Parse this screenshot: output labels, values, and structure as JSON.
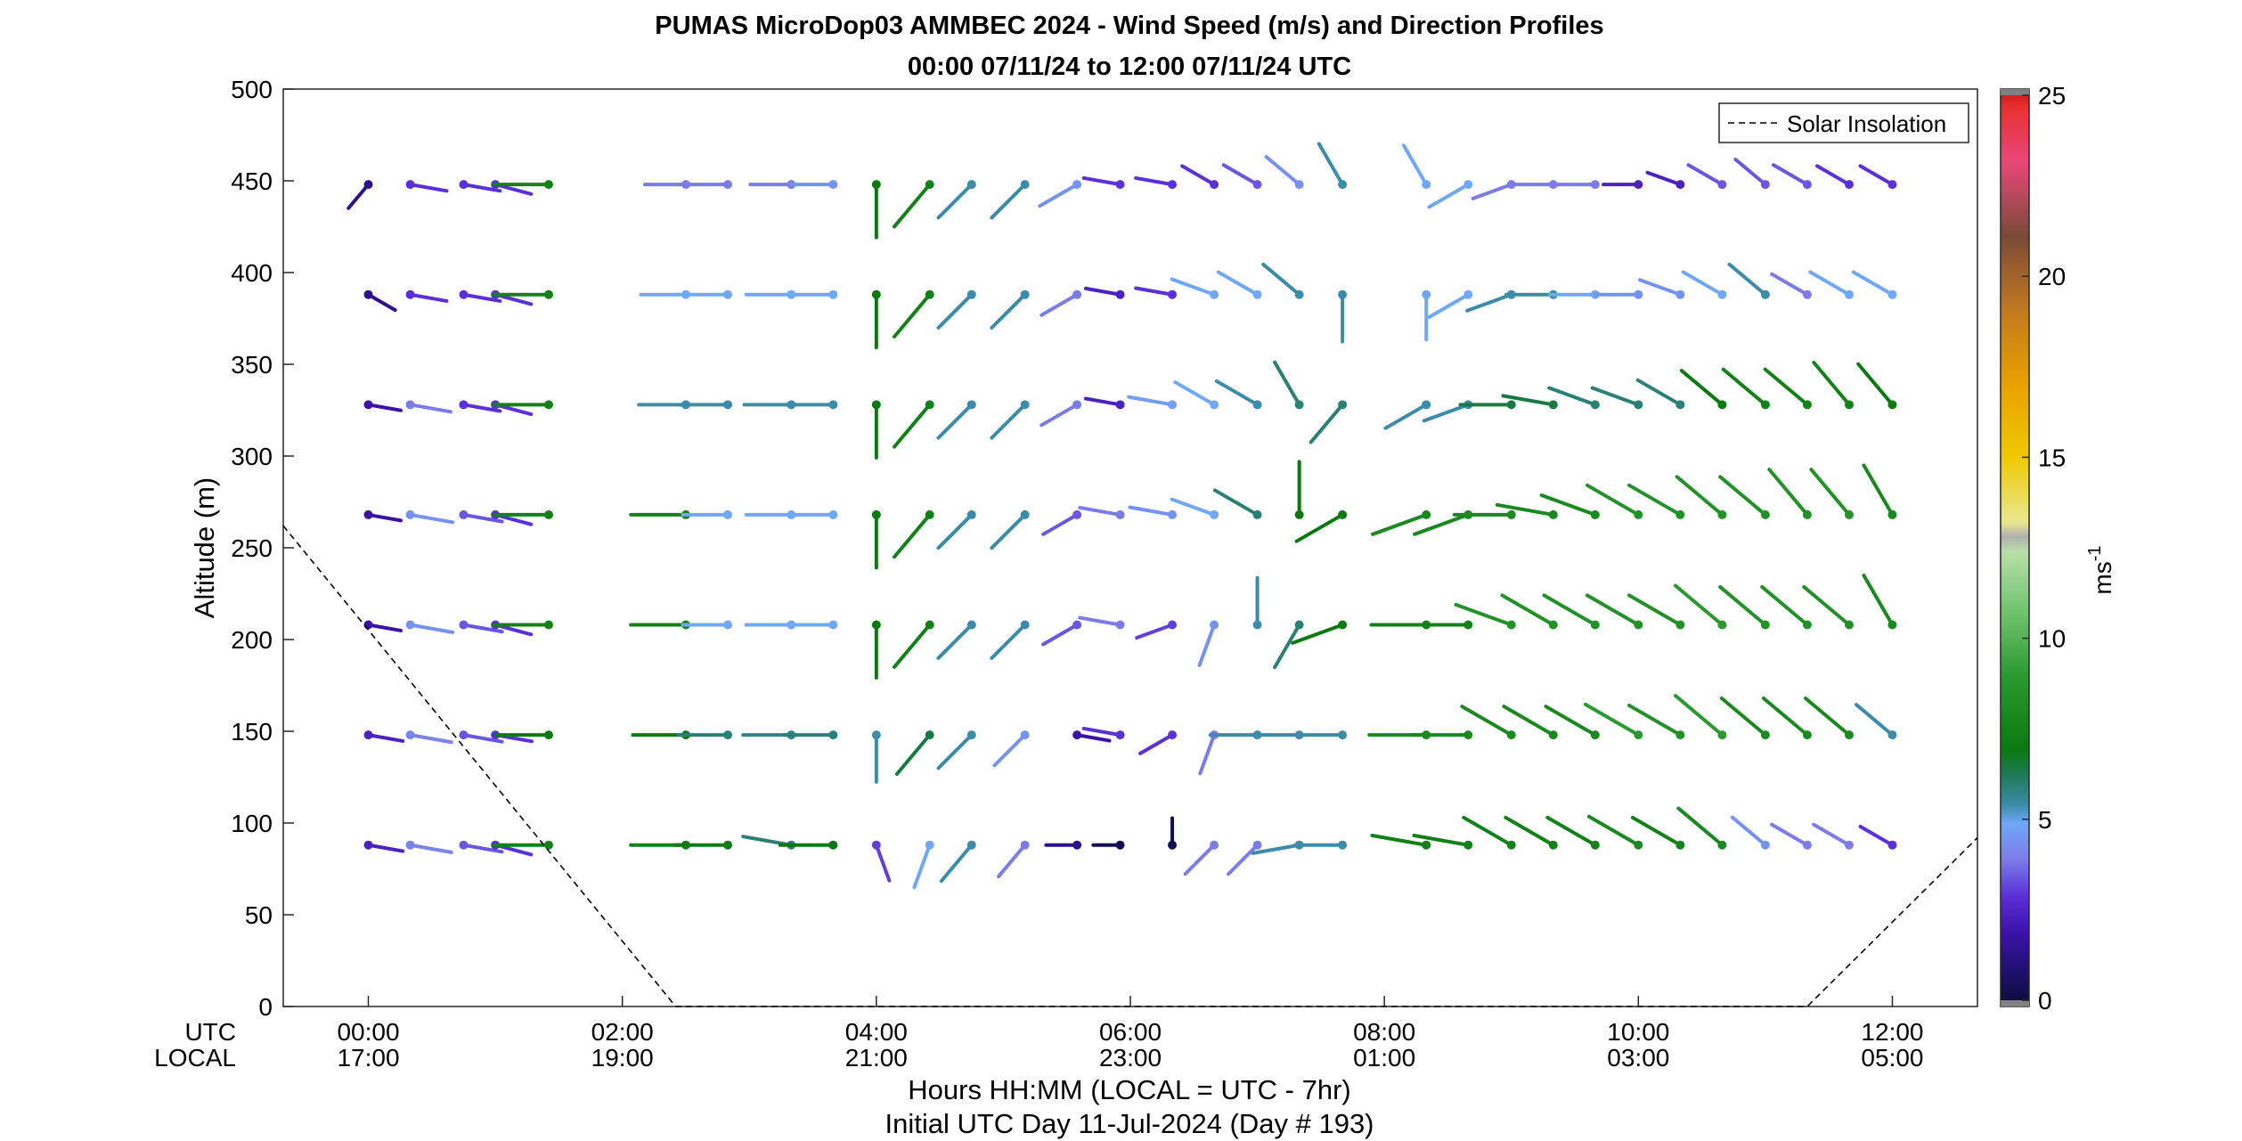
{
  "chart_data": {
    "type": "scatter",
    "title": "PUMAS MicroDop03 AMMBEC 2024 - Wind Speed (m/s) and Direction Profiles",
    "subtitle": "00:00 07/11/24 to 12:00 07/11/24  UTC",
    "ylabel": "Altitude (m)",
    "xlabel": "Hours HH:MM  (LOCAL = UTC - 7hr)",
    "xlabel2": "Initial UTC Day 11-Jul-2024 (Day # 193)",
    "xrow_utc": "UTC",
    "xrow_local": "LOCAL",
    "xlim_hours": [
      -0.67,
      12.67
    ],
    "ylim": [
      0,
      500
    ],
    "yticks": [
      "0",
      "50",
      "100",
      "150",
      "200",
      "250",
      "300",
      "350",
      "400",
      "450",
      "500"
    ],
    "xticks": [
      {
        "hour": 0,
        "utc": "00:00",
        "local": "17:00"
      },
      {
        "hour": 2,
        "utc": "02:00",
        "local": "19:00"
      },
      {
        "hour": 4,
        "utc": "04:00",
        "local": "21:00"
      },
      {
        "hour": 6,
        "utc": "06:00",
        "local": "23:00"
      },
      {
        "hour": 8,
        "utc": "08:00",
        "local": "01:00"
      },
      {
        "hour": 10,
        "utc": "10:00",
        "local": "03:00"
      },
      {
        "hour": 12,
        "utc": "12:00",
        "local": "05:00"
      }
    ],
    "legend": {
      "label": "Solar Insolation",
      "placement": "top-right",
      "style": "dashed black line"
    },
    "solar_insolation_altitude": [
      [
        -0.67,
        262
      ],
      [
        2.42,
        0
      ],
      [
        11.33,
        0
      ],
      [
        12.67,
        92
      ]
    ],
    "colorbar": {
      "label": "ms",
      "label_exponent": "-1",
      "range": [
        0,
        25
      ],
      "ticks": [
        "0",
        "5",
        "10",
        "15",
        "20",
        "25"
      ],
      "stops": [
        [
          0,
          "#0c0c36"
        ],
        [
          1,
          "#1f1070"
        ],
        [
          2,
          "#3b12a8"
        ],
        [
          3,
          "#5a30d8"
        ],
        [
          4,
          "#7c7ce8"
        ],
        [
          5,
          "#6fa8f8"
        ],
        [
          5.5,
          "#3a8ca8"
        ],
        [
          6.3,
          "#1e7a58"
        ],
        [
          7,
          "#0a7a10"
        ],
        [
          9,
          "#2a9a30"
        ],
        [
          11,
          "#7cc878"
        ],
        [
          12.4,
          "#b8e0a8"
        ],
        [
          12.8,
          "#b0b0b0"
        ],
        [
          13.2,
          "#e8e890"
        ],
        [
          15,
          "#f0c800"
        ],
        [
          17,
          "#e8a000"
        ],
        [
          19,
          "#c07820"
        ],
        [
          21,
          "#7a4a38"
        ],
        [
          23,
          "#e8487a"
        ],
        [
          24.5,
          "#e83030"
        ],
        [
          25,
          "#d01010"
        ]
      ]
    },
    "barb_altitudes": [
      88,
      148,
      208,
      268,
      328,
      388,
      448
    ],
    "barb_times": [
      0,
      0.33,
      0.75,
      1.0,
      1.42,
      2.5,
      2.83,
      3.33,
      3.66,
      4.0,
      4.42,
      4.75,
      5.17,
      5.58,
      5.92,
      6.33,
      6.66,
      7.0,
      7.33,
      7.67,
      8.33,
      8.66,
      9.0,
      9.33,
      9.66,
      10.0,
      10.33,
      10.66,
      11.0,
      11.33,
      11.66,
      12.0
    ],
    "wind_profiles": [
      {
        "alt": 88,
        "speed": [
          2.5,
          4.2,
          3.5,
          3.0,
          7.5,
          7.5,
          7.2,
          6.0,
          7.0,
          3.2,
          5.0,
          5.5,
          4.0,
          1.5,
          0.5,
          0.5,
          4.0,
          4.0,
          5.5,
          5.5,
          7.5,
          7.5,
          7.5,
          7.5,
          7.5,
          8.0,
          7.5,
          8.0,
          4.5,
          4.0,
          4.0,
          3.0
        ],
        "dir": [
          100,
          100,
          100,
          105,
          270,
          270,
          270,
          280,
          270,
          160,
          200,
          220,
          220,
          270,
          270,
          360,
          225,
          225,
          260,
          270,
          280,
          280,
          300,
          300,
          300,
          300,
          300,
          310,
          310,
          300,
          300,
          300
        ]
      },
      {
        "alt": 148,
        "speed": [
          2.5,
          4.2,
          3.5,
          3.0,
          7.0,
          7.0,
          6.0,
          5.8,
          6.0,
          5.5,
          6.5,
          5.5,
          4.5,
          2.0,
          3.0,
          3.0,
          4.0,
          5.5,
          5.5,
          5.5,
          8.0,
          8.0,
          8.0,
          8.0,
          8.0,
          9.0,
          8.5,
          9.0,
          8.0,
          8.0,
          8.0,
          5.5
        ],
        "dir": [
          100,
          100,
          100,
          100,
          270,
          270,
          270,
          270,
          270,
          180,
          220,
          225,
          225,
          100,
          280,
          240,
          200,
          270,
          270,
          270,
          270,
          270,
          300,
          300,
          300,
          300,
          300,
          310,
          310,
          310,
          310,
          310
        ]
      },
      {
        "alt": 208,
        "speed": [
          2.0,
          4.5,
          3.5,
          3.0,
          7.5,
          7.5,
          5.0,
          5.0,
          5.0,
          7.0,
          7.5,
          5.5,
          5.5,
          3.5,
          4.0,
          3.2,
          4.5,
          5.5,
          6.0,
          7.0,
          7.5,
          7.5,
          8.5,
          8.5,
          8.5,
          8.5,
          8.5,
          9.0,
          8.5,
          8.5,
          8.5,
          8.0
        ],
        "dir": [
          100,
          100,
          100,
          105,
          270,
          270,
          270,
          270,
          270,
          180,
          220,
          225,
          225,
          240,
          280,
          250,
          200,
          360,
          210,
          250,
          270,
          270,
          290,
          300,
          300,
          300,
          300,
          310,
          310,
          310,
          310,
          330
        ]
      },
      {
        "alt": 268,
        "speed": [
          2.0,
          4.5,
          3.5,
          3.0,
          7.5,
          7.5,
          5.0,
          5.0,
          5.0,
          7.0,
          7.5,
          5.5,
          5.5,
          3.5,
          4.0,
          4.5,
          5.0,
          6.0,
          7.0,
          7.0,
          8.0,
          8.0,
          8.0,
          8.0,
          8.0,
          8.5,
          8.5,
          8.5,
          8.5,
          8.5,
          8.5,
          8.0
        ],
        "dir": [
          100,
          100,
          100,
          105,
          270,
          270,
          270,
          270,
          270,
          180,
          220,
          225,
          225,
          240,
          280,
          280,
          290,
          300,
          360,
          240,
          250,
          250,
          270,
          280,
          290,
          300,
          300,
          310,
          310,
          320,
          320,
          330
        ]
      },
      {
        "alt": 328,
        "speed": [
          2.0,
          4.0,
          3.0,
          3.0,
          7.5,
          5.5,
          5.5,
          5.5,
          5.5,
          7.0,
          7.5,
          5.5,
          5.5,
          4.0,
          2.5,
          4.8,
          5.0,
          5.5,
          6.0,
          6.0,
          5.5,
          5.5,
          6.5,
          6.5,
          6.0,
          6.0,
          6.0,
          7.0,
          7.5,
          7.5,
          7.5,
          7.0
        ],
        "dir": [
          100,
          100,
          100,
          105,
          270,
          270,
          270,
          270,
          270,
          180,
          220,
          225,
          225,
          240,
          280,
          280,
          300,
          300,
          330,
          220,
          240,
          250,
          270,
          280,
          290,
          290,
          300,
          310,
          310,
          310,
          320,
          320
        ]
      },
      {
        "alt": 388,
        "speed": [
          1.5,
          3.0,
          3.0,
          3.0,
          7.5,
          5.0,
          5.0,
          5.0,
          5.0,
          7.0,
          7.5,
          5.5,
          5.5,
          4.0,
          2.5,
          3.0,
          5.0,
          5.0,
          5.5,
          5.5,
          5.0,
          5.0,
          5.5,
          5.5,
          5.0,
          4.5,
          4.5,
          5.0,
          5.5,
          4.0,
          5.0,
          5.0
        ],
        "dir": [
          120,
          100,
          100,
          105,
          270,
          270,
          270,
          270,
          270,
          180,
          220,
          225,
          225,
          240,
          280,
          280,
          290,
          300,
          310,
          180,
          180,
          240,
          250,
          270,
          270,
          270,
          290,
          300,
          310,
          300,
          300,
          300
        ]
      },
      {
        "alt": 448,
        "speed": [
          1.5,
          3.0,
          3.0,
          3.0,
          7.5,
          4.0,
          4.0,
          4.0,
          4.5,
          7.0,
          7.5,
          5.5,
          5.5,
          4.5,
          3.0,
          3.0,
          3.0,
          3.5,
          4.5,
          5.5,
          5.0,
          5.0,
          4.0,
          4.0,
          4.0,
          2.5,
          2.5,
          3.5,
          3.5,
          3.5,
          3.0,
          3.0
        ],
        "dir": [
          220,
          100,
          100,
          105,
          270,
          270,
          270,
          270,
          270,
          180,
          220,
          225,
          225,
          240,
          280,
          280,
          300,
          300,
          310,
          330,
          330,
          240,
          250,
          270,
          270,
          270,
          290,
          300,
          310,
          300,
          300,
          300
        ]
      }
    ]
  }
}
